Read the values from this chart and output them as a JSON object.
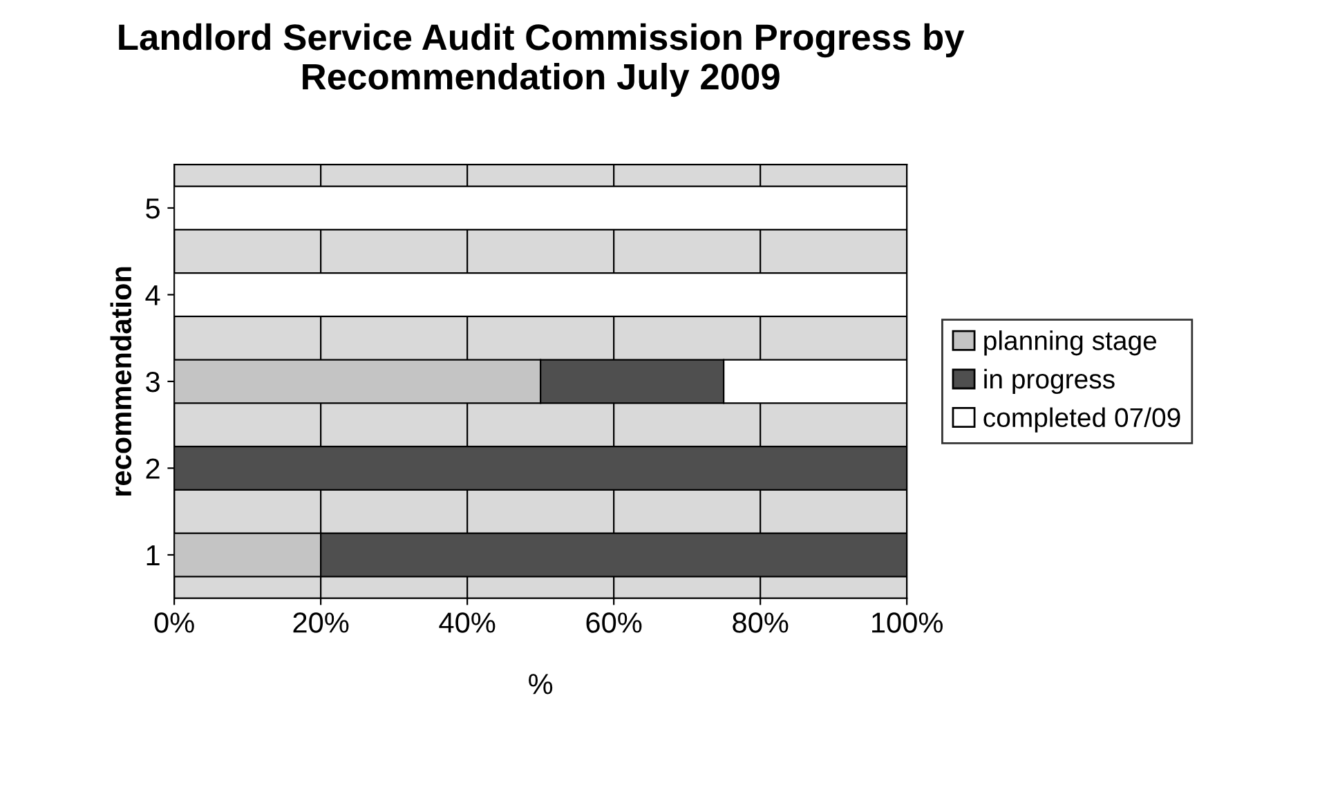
{
  "chart_data": {
    "type": "bar",
    "orientation": "horizontal",
    "stacked": true,
    "title": "Landlord Service Audit Commission Progress by Recommendation July 2009",
    "xlabel": "%",
    "ylabel": "recommendation",
    "categories": [
      "5",
      "4",
      "3",
      "2",
      "1"
    ],
    "series": [
      {
        "name": "planning stage",
        "color": "#c4c4c4",
        "values": [
          0,
          0,
          50,
          0,
          20
        ]
      },
      {
        "name": "in progress",
        "color": "#4f4f4f",
        "values": [
          0,
          0,
          25,
          100,
          80
        ]
      },
      {
        "name": "completed 07/09",
        "color": "#ffffff",
        "values": [
          100,
          100,
          25,
          0,
          0
        ]
      }
    ],
    "xlim": [
      0,
      100
    ],
    "xticks": [
      {
        "value": 0,
        "label": "0%"
      },
      {
        "value": 20,
        "label": "20%"
      },
      {
        "value": 40,
        "label": "40%"
      },
      {
        "value": 60,
        "label": "60%"
      },
      {
        "value": 80,
        "label": "80%"
      },
      {
        "value": 100,
        "label": "100%"
      }
    ],
    "grid": "x",
    "legend": "right"
  }
}
